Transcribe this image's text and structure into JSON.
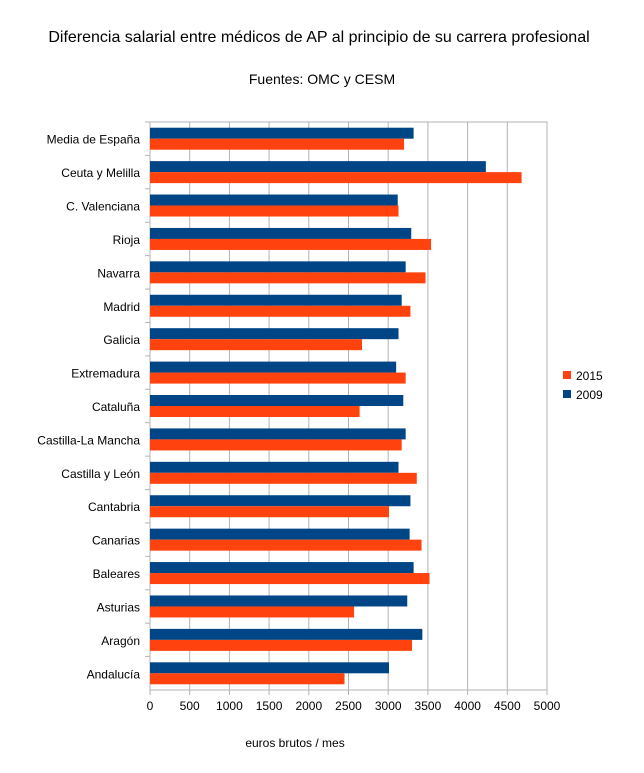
{
  "chart_data": {
    "type": "bar",
    "orientation": "horizontal",
    "title": "Diferencia salarial entre médicos de AP al principio de su carrera profesional",
    "subtitle": "Fuentes: OMC y CESM",
    "xlabel": "euros brutos / mes",
    "ylabel": "",
    "xlim": [
      0,
      5000
    ],
    "xticks": [
      0,
      500,
      1000,
      1500,
      2000,
      2500,
      3000,
      3500,
      4000,
      4500,
      5000
    ],
    "grid": true,
    "legend_position": "right",
    "categories": [
      "Media de España",
      "Ceuta y Melilla",
      "C. Valenciana",
      "Rioja",
      "Navarra",
      "Madrid",
      "Galicia",
      "Extremadura",
      "Cataluña",
      "Castilla-La Mancha",
      "Castilla y León",
      "Cantabria",
      "Canarias",
      "Baleares",
      "Asturias",
      "Aragón",
      "Andalucía"
    ],
    "series": [
      {
        "name": "2009",
        "color": "#004586",
        "values": [
          3320,
          4230,
          3120,
          3290,
          3220,
          3170,
          3130,
          3100,
          3190,
          3220,
          3130,
          3280,
          3270,
          3320,
          3240,
          3430,
          3010
        ]
      },
      {
        "name": "2015",
        "color": "#ff420e",
        "values": [
          3200,
          4680,
          3130,
          3540,
          3470,
          3280,
          2670,
          3220,
          2640,
          3170,
          3360,
          3010,
          3420,
          3520,
          2570,
          3300,
          2450
        ]
      }
    ],
    "legend_order": [
      "2015",
      "2009"
    ]
  }
}
